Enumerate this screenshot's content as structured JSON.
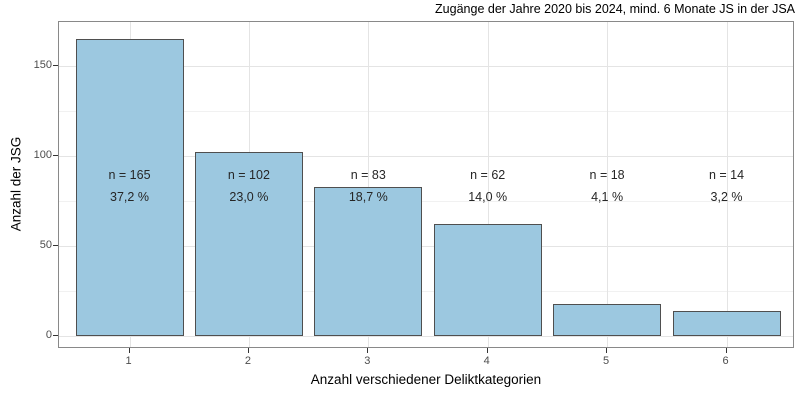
{
  "chart_data": {
    "type": "bar",
    "title": "Zugänge der Jahre 2020 bis 2024, mind. 6 Monate JS in der JSA",
    "xlabel": "Anzahl verschiedener Deliktkategorien",
    "ylabel": "Anzahl der JSG",
    "categories": [
      "1",
      "2",
      "3",
      "4",
      "5",
      "6"
    ],
    "values": [
      165,
      102,
      83,
      62,
      18,
      14
    ],
    "bar_labels_n": [
      "n = 165",
      "n = 102",
      "n = 83",
      "n = 62",
      "n = 18",
      "n = 14"
    ],
    "bar_labels_pct": [
      "37,2 %",
      "23,0 %",
      "18,7 %",
      "14,0 %",
      "4,1 %",
      "3,2 %"
    ],
    "y_ticks": [
      0,
      50,
      100,
      150
    ],
    "y_minor_ticks": [
      25,
      75,
      125
    ],
    "ylim": [
      0,
      173
    ],
    "grid": "major-and-minor-horizontal, major-vertical",
    "legend": "none",
    "colors": {
      "bar_fill": "#9cc8e0",
      "bar_border": "#4f4f4f",
      "grid_major": "#e4e4e4",
      "grid_minor": "#f1f1f1",
      "panel_border": "#898989",
      "tick": "#333333",
      "tick_label": "#4d4d4d",
      "text": "#000000",
      "bar_label_text": "#262626"
    }
  }
}
